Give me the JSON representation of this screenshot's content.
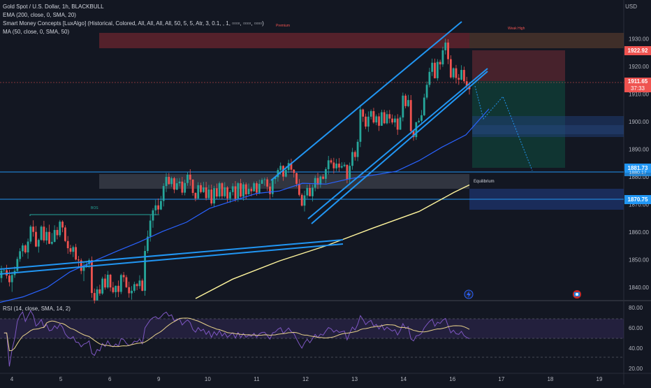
{
  "legend": {
    "symbol": "Gold Spot / U.S. Dollar, 1h, BLACKBULL",
    "ema": "EMA (200, close, 0, SMA, 20)",
    "smc": "Smart Money Concepts [LuxAlgo] (Historical, Colored, All, All, All, All, 50, 5, 5, Atr, 3, 0.1, , 1, ▫▫▫▫, ▫▫▫▫, ▫▫▫▫)",
    "ma": "MA (50, close, 0, SMA, 50)"
  },
  "currency": "USD",
  "price_axis": [
    "1930.00",
    "1920.00",
    "1910.00",
    "1900.00",
    "1890.00",
    "1880.00",
    "1870.00",
    "1860.00",
    "1850.00",
    "1840.00"
  ],
  "time_axis": [
    "4",
    "5",
    "6",
    "9",
    "10",
    "11",
    "12",
    "13",
    "14",
    "16",
    "17",
    "18",
    "19"
  ],
  "rsi": {
    "legend": "RSI (14, close, SMA, 14, 2)",
    "axis": [
      "80.00",
      "60.00",
      "40.00",
      "20.00"
    ]
  },
  "price_tags": {
    "high": "1922.92",
    "current": "1911.65",
    "countdown": "37:33",
    "level_1": "1881.73",
    "level_1_under": "1880.17",
    "level_2": "1870.75"
  },
  "annotations": {
    "premium": "Premium",
    "weak_high": "Weak High",
    "equilibrium": "Equilibrium",
    "bos": "BOS"
  },
  "colors": {
    "background": "#131722",
    "up": "#26a69a",
    "down": "#ef5350",
    "ema": "#2962ff",
    "ma": "#fff59d",
    "trendline": "#2196f3",
    "rsi": "#7e57c2",
    "rsi_ma": "#e8d28a"
  },
  "chart_data": {
    "type": "candlestick",
    "y_range": [
      1836,
      1944
    ],
    "candles": [
      [
        1843.4,
        1846.1,
        1841.8,
        1847.9
      ],
      [
        1846.1,
        1846.2,
        1845.4,
        1846.8
      ],
      [
        1846.2,
        1844.3,
        1843.2,
        1848.2
      ],
      [
        1844.3,
        1841.9,
        1840.4,
        1846.4
      ],
      [
        1841.9,
        1844.5,
        1838.4,
        1845.7
      ],
      [
        1844.5,
        1846.0,
        1843.5,
        1847.6
      ],
      [
        1846.0,
        1850.3,
        1845.6,
        1851.1
      ],
      [
        1850.3,
        1853.1,
        1849.3,
        1854.2
      ],
      [
        1853.1,
        1855.2,
        1851.1,
        1856.0
      ],
      [
        1855.2,
        1852.7,
        1852.2,
        1855.6
      ],
      [
        1852.7,
        1856.6,
        1850.4,
        1857.7
      ],
      [
        1856.6,
        1862.0,
        1855.8,
        1862.6
      ],
      [
        1862.0,
        1860.1,
        1858.4,
        1864.3
      ],
      [
        1860.1,
        1854.8,
        1854.6,
        1862.2
      ],
      [
        1854.8,
        1857.2,
        1852.6,
        1857.7
      ],
      [
        1857.2,
        1862.0,
        1856.9,
        1862.5
      ],
      [
        1862.0,
        1857.0,
        1856.2,
        1864.1
      ],
      [
        1857.0,
        1860.1,
        1855.5,
        1861.6
      ],
      [
        1860.1,
        1855.8,
        1855.7,
        1862.7
      ],
      [
        1855.8,
        1856.5,
        1855.4,
        1859.7
      ],
      [
        1856.5,
        1860.8,
        1856.3,
        1862.5
      ],
      [
        1860.8,
        1858.9,
        1857.4,
        1861.9
      ],
      [
        1858.9,
        1863.8,
        1858.2,
        1864.4
      ],
      [
        1863.8,
        1861.7,
        1860.0,
        1864.3
      ],
      [
        1861.7,
        1856.8,
        1856.4,
        1862.5
      ],
      [
        1856.8,
        1854.2,
        1852.2,
        1858.6
      ],
      [
        1854.2,
        1852.9,
        1852.0,
        1855.4
      ],
      [
        1852.9,
        1854.6,
        1851.0,
        1855.2
      ],
      [
        1854.6,
        1850.1,
        1849.8,
        1855.8
      ],
      [
        1850.1,
        1849.8,
        1847.3,
        1851.4
      ],
      [
        1849.8,
        1846.0,
        1844.8,
        1850.5
      ],
      [
        1846.0,
        1847.8,
        1842.3,
        1849.2
      ],
      [
        1847.8,
        1848.4,
        1847.1,
        1849.6
      ],
      [
        1848.4,
        1849.9,
        1847.0,
        1850.5
      ],
      [
        1849.9,
        1838.0,
        1836.3,
        1851.2
      ],
      [
        1838.0,
        1835.3,
        1834.2,
        1839.6
      ],
      [
        1835.3,
        1839.3,
        1835.3,
        1840.4
      ],
      [
        1839.3,
        1837.8,
        1837.0,
        1841.0
      ],
      [
        1837.8,
        1843.2,
        1837.3,
        1843.9
      ],
      [
        1843.2,
        1840.0,
        1839.2,
        1844.8
      ],
      [
        1840.0,
        1844.6,
        1839.5,
        1846.0
      ],
      [
        1844.6,
        1840.0,
        1838.6,
        1844.9
      ],
      [
        1840.0,
        1838.3,
        1837.8,
        1842.0
      ],
      [
        1838.3,
        1840.6,
        1836.4,
        1840.7
      ],
      [
        1840.6,
        1838.4,
        1836.5,
        1842.5
      ],
      [
        1838.4,
        1844.5,
        1837.6,
        1845.0
      ],
      [
        1844.5,
        1843.7,
        1842.0,
        1845.6
      ],
      [
        1843.7,
        1840.1,
        1839.8,
        1844.5
      ],
      [
        1840.1,
        1837.9,
        1836.3,
        1842.1
      ],
      [
        1837.9,
        1838.8,
        1835.6,
        1840.5
      ],
      [
        1838.8,
        1841.2,
        1838.1,
        1842.1
      ],
      [
        1841.2,
        1840.5,
        1839.0,
        1841.6
      ],
      [
        1840.5,
        1842.5,
        1839.5,
        1844.4
      ],
      [
        1842.5,
        1838.8,
        1838.6,
        1843.2
      ],
      [
        1838.8,
        1853.2,
        1837.0,
        1855.1
      ],
      [
        1853.2,
        1858.4,
        1852.4,
        1860.6
      ],
      [
        1858.4,
        1864.2,
        1856.6,
        1866.2
      ],
      [
        1864.2,
        1867.9,
        1861.6,
        1868.7
      ],
      [
        1867.9,
        1869.7,
        1866.1,
        1871.7
      ],
      [
        1869.7,
        1868.2,
        1866.6,
        1872.2
      ],
      [
        1868.2,
        1871.3,
        1868.0,
        1873.1
      ],
      [
        1871.3,
        1876.7,
        1869.3,
        1877.7
      ],
      [
        1876.7,
        1880.0,
        1874.5,
        1881.4
      ],
      [
        1880.0,
        1877.4,
        1877.2,
        1881.4
      ],
      [
        1877.4,
        1879.5,
        1876.4,
        1880.1
      ],
      [
        1879.5,
        1875.4,
        1874.1,
        1880.0
      ],
      [
        1875.4,
        1877.7,
        1875.2,
        1879.5
      ],
      [
        1877.7,
        1878.3,
        1876.6,
        1879.6
      ],
      [
        1878.3,
        1874.3,
        1873.4,
        1880.0
      ],
      [
        1874.3,
        1877.8,
        1873.3,
        1879.0
      ],
      [
        1877.8,
        1880.8,
        1876.8,
        1881.9
      ],
      [
        1880.8,
        1879.0,
        1876.8,
        1882.8
      ],
      [
        1879.0,
        1874.2,
        1873.2,
        1879.2
      ],
      [
        1874.2,
        1872.2,
        1871.2,
        1874.4
      ],
      [
        1872.2,
        1877.0,
        1872.0,
        1878.1
      ],
      [
        1877.0,
        1874.5,
        1874.0,
        1877.9
      ],
      [
        1874.5,
        1876.2,
        1874.2,
        1878.2
      ],
      [
        1876.2,
        1872.3,
        1871.5,
        1878.2
      ],
      [
        1872.3,
        1875.5,
        1872.0,
        1877.1
      ],
      [
        1875.5,
        1870.4,
        1869.6,
        1877.2
      ],
      [
        1870.4,
        1875.9,
        1869.0,
        1876.8
      ],
      [
        1875.9,
        1872.9,
        1872.0,
        1877.6
      ],
      [
        1872.9,
        1877.7,
        1872.2,
        1878.3
      ],
      [
        1877.7,
        1873.0,
        1871.9,
        1878.1
      ],
      [
        1873.0,
        1876.2,
        1872.4,
        1878.1
      ],
      [
        1876.2,
        1872.2,
        1870.8,
        1876.7
      ],
      [
        1872.2,
        1874.5,
        1870.6,
        1875.3
      ],
      [
        1874.5,
        1876.6,
        1873.3,
        1877.7
      ],
      [
        1876.6,
        1872.1,
        1871.0,
        1878.5
      ],
      [
        1872.1,
        1877.7,
        1871.0,
        1878.1
      ],
      [
        1877.7,
        1872.9,
        1872.5,
        1879.3
      ],
      [
        1872.9,
        1877.3,
        1871.4,
        1878.1
      ],
      [
        1877.3,
        1873.7,
        1871.8,
        1878.0
      ],
      [
        1873.7,
        1875.7,
        1873.6,
        1877.6
      ],
      [
        1875.7,
        1874.8,
        1873.0,
        1876.4
      ],
      [
        1874.8,
        1877.7,
        1874.6,
        1878.3
      ],
      [
        1877.7,
        1874.3,
        1873.2,
        1878.4
      ],
      [
        1874.3,
        1877.5,
        1873.7,
        1879.0
      ],
      [
        1877.5,
        1878.9,
        1877.5,
        1879.6
      ],
      [
        1878.9,
        1879.1,
        1876.8,
        1879.8
      ],
      [
        1879.1,
        1876.5,
        1874.9,
        1879.9
      ],
      [
        1876.5,
        1873.8,
        1871.8,
        1877.7
      ],
      [
        1873.8,
        1879.2,
        1872.7,
        1879.4
      ],
      [
        1879.2,
        1879.9,
        1877.5,
        1880.0
      ],
      [
        1879.9,
        1882.5,
        1878.3,
        1883.2
      ],
      [
        1882.5,
        1884.0,
        1880.8,
        1885.2
      ],
      [
        1884.0,
        1880.1,
        1878.6,
        1884.2
      ],
      [
        1880.1,
        1882.5,
        1879.8,
        1883.9
      ],
      [
        1882.5,
        1885.0,
        1881.3,
        1886.2
      ],
      [
        1885.0,
        1882.6,
        1881.5,
        1886.6
      ],
      [
        1882.6,
        1881.4,
        1879.8,
        1882.8
      ],
      [
        1881.4,
        1877.5,
        1876.4,
        1881.5
      ],
      [
        1877.5,
        1873.5,
        1872.9,
        1879.2
      ],
      [
        1873.5,
        1869.6,
        1869.3,
        1874.1
      ],
      [
        1869.6,
        1873.3,
        1867.5,
        1875.0
      ],
      [
        1873.3,
        1876.0,
        1872.2,
        1877.1
      ],
      [
        1876.0,
        1873.0,
        1873.0,
        1877.4
      ],
      [
        1873.0,
        1876.1,
        1871.1,
        1877.2
      ],
      [
        1876.1,
        1879.6,
        1874.8,
        1880.5
      ],
      [
        1879.6,
        1877.2,
        1875.6,
        1881.5
      ],
      [
        1877.2,
        1880.1,
        1876.1,
        1880.5
      ],
      [
        1880.1,
        1879.3,
        1879.1,
        1881.0
      ],
      [
        1879.3,
        1882.8,
        1877.7,
        1883.5
      ],
      [
        1882.8,
        1886.0,
        1880.9,
        1887.6
      ],
      [
        1886.0,
        1885.2,
        1884.6,
        1886.7
      ],
      [
        1885.2,
        1883.1,
        1881.2,
        1886.9
      ],
      [
        1883.1,
        1884.8,
        1882.1,
        1886.5
      ],
      [
        1884.8,
        1883.4,
        1881.8,
        1886.8
      ],
      [
        1883.4,
        1883.9,
        1883.0,
        1885.3
      ],
      [
        1883.9,
        1884.4,
        1883.5,
        1885.3
      ],
      [
        1884.4,
        1879.1,
        1877.7,
        1884.4
      ],
      [
        1879.1,
        1884.0,
        1877.6,
        1885.2
      ],
      [
        1884.0,
        1889.0,
        1882.6,
        1890.5
      ],
      [
        1889.0,
        1887.2,
        1885.9,
        1889.6
      ],
      [
        1887.2,
        1892.7,
        1885.7,
        1893.6
      ],
      [
        1892.7,
        1904.4,
        1890.8,
        1906.1
      ],
      [
        1904.4,
        1901.8,
        1899.9,
        1904.7
      ],
      [
        1901.8,
        1898.2,
        1897.3,
        1902.9
      ],
      [
        1898.2,
        1901.8,
        1896.3,
        1903.7
      ],
      [
        1901.8,
        1903.8,
        1900.8,
        1904.4
      ],
      [
        1903.8,
        1899.7,
        1899.2,
        1905.0
      ],
      [
        1899.7,
        1901.9,
        1898.7,
        1902.6
      ],
      [
        1901.9,
        1898.5,
        1896.6,
        1903.1
      ],
      [
        1898.5,
        1903.4,
        1898.5,
        1904.3
      ],
      [
        1903.4,
        1899.4,
        1899.1,
        1904.3
      ],
      [
        1899.4,
        1902.7,
        1899.0,
        1904.0
      ],
      [
        1902.7,
        1901.1,
        1899.4,
        1904.2
      ],
      [
        1901.1,
        1899.7,
        1899.0,
        1902.6
      ],
      [
        1899.7,
        1901.1,
        1898.1,
        1902.2
      ],
      [
        1901.1,
        1897.1,
        1895.2,
        1902.7
      ],
      [
        1897.1,
        1901.5,
        1897.0,
        1902.2
      ],
      [
        1901.5,
        1909.4,
        1900.1,
        1910.5
      ],
      [
        1909.4,
        1905.6,
        1904.8,
        1910.1
      ],
      [
        1905.6,
        1907.8,
        1905.2,
        1909.7
      ],
      [
        1907.8,
        1896.6,
        1895.4,
        1909.6
      ],
      [
        1896.6,
        1894.4,
        1893.1,
        1897.1
      ],
      [
        1894.4,
        1899.8,
        1893.4,
        1899.9
      ],
      [
        1899.8,
        1900.3,
        1899.4,
        1901.3
      ],
      [
        1900.3,
        1902.3,
        1899.6,
        1904.2
      ],
      [
        1902.3,
        1908.7,
        1902.0,
        1910.1
      ],
      [
        1908.7,
        1913.3,
        1908.0,
        1914.5
      ],
      [
        1913.3,
        1918.0,
        1912.4,
        1919.5
      ],
      [
        1918.0,
        1921.3,
        1916.5,
        1922.8
      ],
      [
        1921.3,
        1915.7,
        1915.6,
        1922.8
      ],
      [
        1915.7,
        1921.6,
        1914.8,
        1922.6
      ],
      [
        1921.6,
        1920.7,
        1918.8,
        1922.4
      ],
      [
        1920.7,
        1925.8,
        1919.8,
        1927.1
      ],
      [
        1925.8,
        1928.6,
        1924.3,
        1930.0
      ],
      [
        1928.6,
        1922.6,
        1920.8,
        1929.8
      ],
      [
        1922.6,
        1916.0,
        1915.6,
        1924.0
      ],
      [
        1916.0,
        1919.3,
        1915.3,
        1919.6
      ],
      [
        1919.3,
        1915.8,
        1913.8,
        1920.5
      ],
      [
        1915.8,
        1915.2,
        1913.3,
        1917.2
      ],
      [
        1915.2,
        1918.7,
        1914.9,
        1920.4
      ],
      [
        1918.7,
        1914.6,
        1913.8,
        1919.9
      ],
      [
        1914.6,
        1912.8,
        1911.5,
        1916.2
      ],
      [
        1912.8,
        1911.7,
        1909.8,
        1914.4
      ]
    ],
    "ema200_y": [
      [
        0,
        1834.6
      ],
      [
        33,
        1836.6
      ],
      [
        67,
        1839.9
      ],
      [
        100,
        1845.6
      ],
      [
        133,
        1849.4
      ],
      [
        167,
        1853.1
      ],
      [
        200,
        1856.5
      ],
      [
        233,
        1860.3
      ],
      [
        267,
        1863.6
      ],
      [
        300,
        1868.6
      ],
      [
        333,
        1871.3
      ],
      [
        367,
        1874.0
      ],
      [
        400,
        1874.9
      ],
      [
        433,
        1877.7
      ],
      [
        467,
        1877.4
      ],
      [
        500,
        1879.3
      ],
      [
        533,
        1880.6
      ],
      [
        567,
        1882.0
      ],
      [
        600,
        1885.9
      ],
      [
        633,
        1890.8
      ],
      [
        667,
        1895.2
      ],
      [
        700,
        1904.6
      ]
    ],
    "ma50_y": [
      [
        280,
        1836.0
      ],
      [
        333,
        1843.0
      ],
      [
        400,
        1849.6
      ],
      [
        467,
        1855.1
      ],
      [
        533,
        1861.4
      ],
      [
        600,
        1867.5
      ],
      [
        650,
        1874.4
      ],
      [
        672,
        1877.1
      ]
    ]
  }
}
